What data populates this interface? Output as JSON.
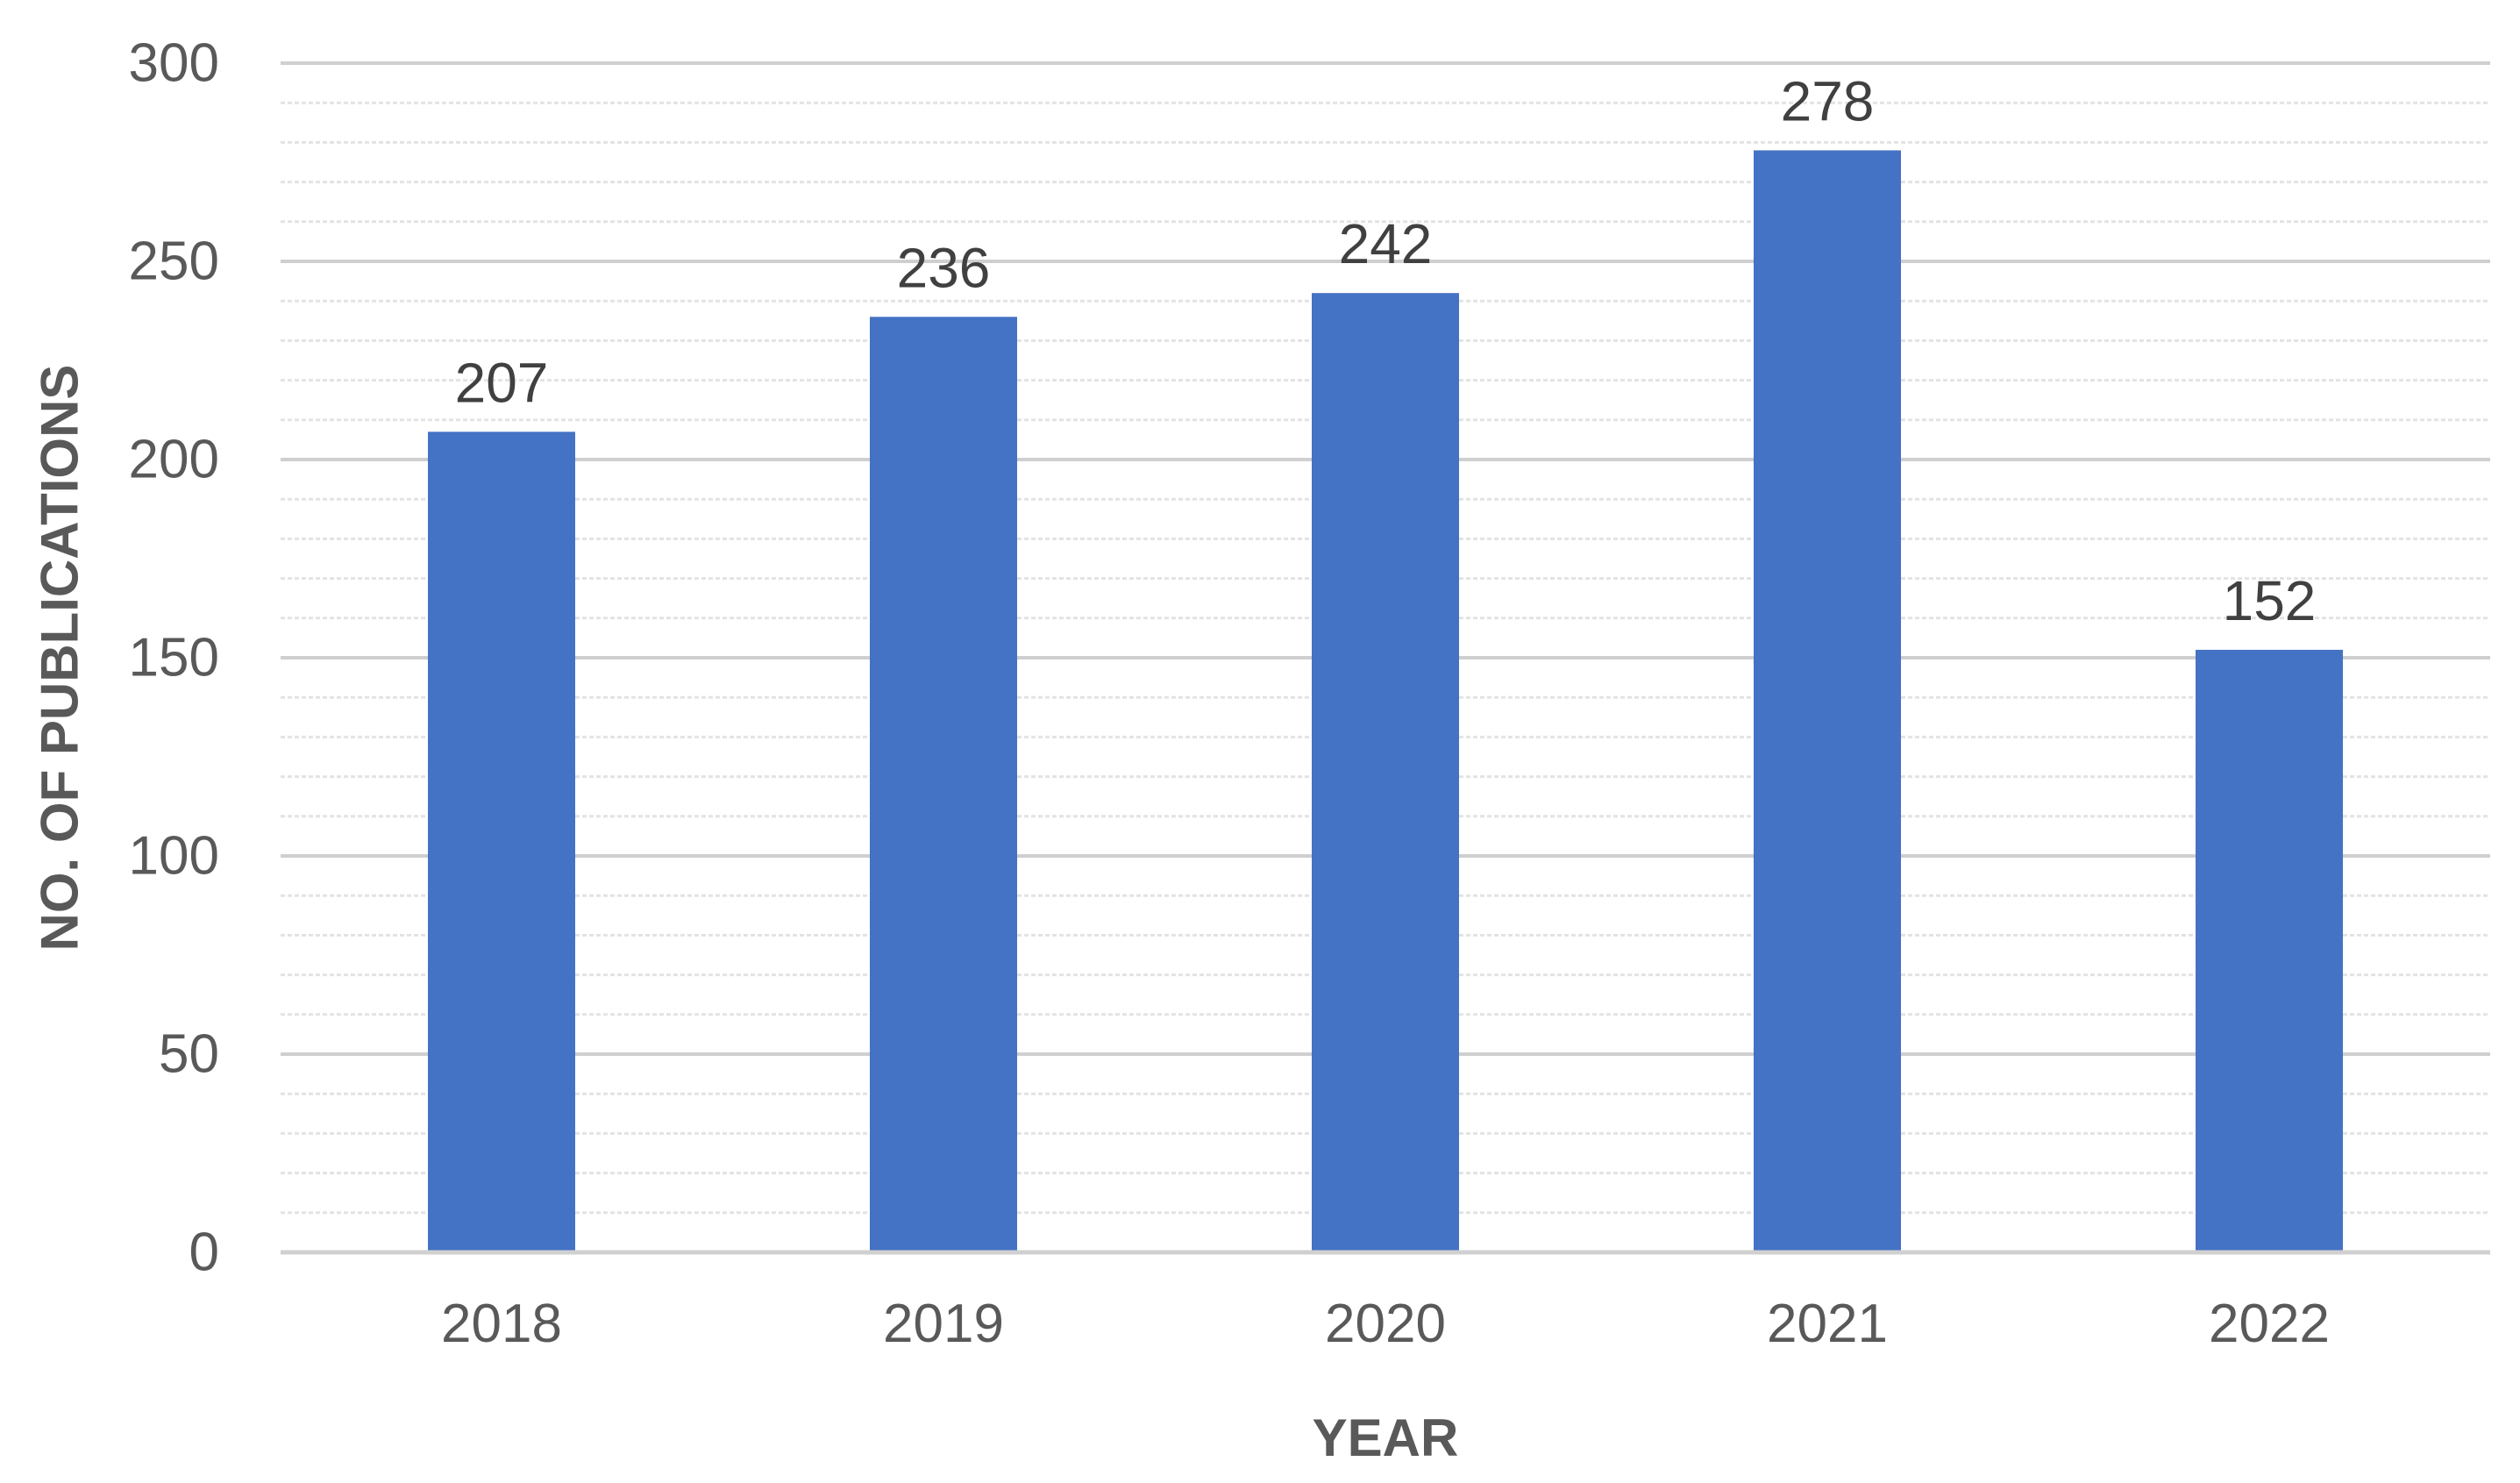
{
  "chart_data": {
    "type": "bar",
    "title": "",
    "xlabel": "YEAR",
    "ylabel": "NO. OF PUBLICATIONS",
    "categories": [
      "2018",
      "2019",
      "2020",
      "2021",
      "2022"
    ],
    "series": [
      {
        "values": [
          207,
          236,
          242,
          278,
          152
        ],
        "color": "#4472C4"
      }
    ],
    "data_labels": [
      "207",
      "236",
      "242",
      "278",
      "152"
    ],
    "ylim": [
      0,
      300
    ],
    "yticks": [
      0,
      50,
      100,
      150,
      200,
      250,
      300
    ],
    "ytick_labels": [
      "0",
      "50",
      "100",
      "150",
      "200",
      "250",
      "300"
    ],
    "grid": {
      "major": true,
      "minor": true
    },
    "legend": "none"
  }
}
